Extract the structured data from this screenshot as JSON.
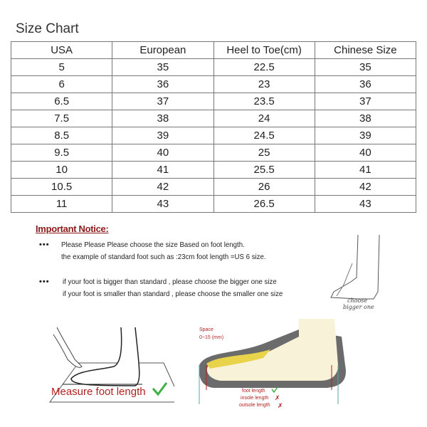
{
  "title": "Size Chart",
  "table": {
    "headers": [
      "USA",
      "European",
      "Heel to Toe(cm)",
      "Chinese Size"
    ],
    "rows": [
      [
        "5",
        "35",
        "22.5",
        "35"
      ],
      [
        "6",
        "36",
        "23",
        "36"
      ],
      [
        "6.5",
        "37",
        "23.5",
        "37"
      ],
      [
        "7.5",
        "38",
        "24",
        "38"
      ],
      [
        "8.5",
        "39",
        "24.5",
        "39"
      ],
      [
        "9.5",
        "40",
        "25",
        "40"
      ],
      [
        "10",
        "41",
        "25.5",
        "41"
      ],
      [
        "10.5",
        "42",
        "26",
        "42"
      ],
      [
        "11",
        "43",
        "26.5",
        "43"
      ]
    ]
  },
  "notice": {
    "heading": "Important Notice:",
    "bullet": "•••",
    "lines": [
      "Please Please Please choose the size Based on foot length.",
      "the example of standard foot such as :23cm foot length =US 6 size.",
      "if your foot is bigger than standard , please choose the bigger one size",
      "if your foot is smaller than standard , please choose the smaller one size"
    ],
    "choose_label": [
      "choose",
      "bigger one"
    ]
  },
  "illustrations": {
    "measure_label": "Measure foot length",
    "space_label": [
      "Space",
      "0~15 (mm)"
    ],
    "lengths": [
      "foot length",
      "insole length",
      "outsole length"
    ],
    "colors": {
      "red": "#b22222",
      "check": "#3cb043",
      "sole": "#6b6b6b",
      "foot": "#f7f2d8",
      "insole": "#e8d34a"
    }
  }
}
